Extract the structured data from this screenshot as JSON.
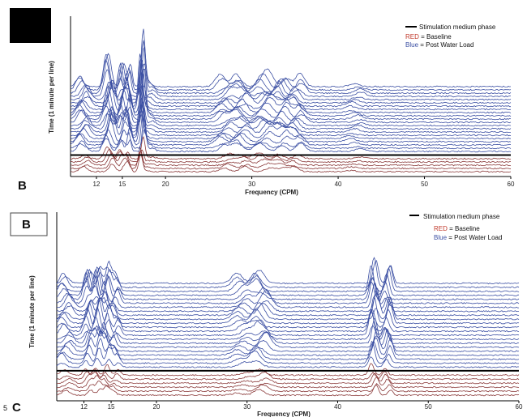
{
  "colors": {
    "baseline": "#8b3a3a",
    "post_water_load": "#3b4fa3",
    "marker": "#000000"
  },
  "legend": {
    "marker_label": "Stimulation medium phase",
    "red_key": "RED",
    "red_rest": " = Baseline",
    "blue_key": "Blue",
    "blue_rest": " = Post Water Load"
  },
  "panel_labels": {
    "top_letter": "B",
    "bottom_box_letter": "B",
    "bottom_letter": "C",
    "page_number": "5"
  },
  "chart_data": [
    {
      "type": "line",
      "title": "",
      "xlabel": "Frequency (CPM)",
      "ylabel": "Time (1 minute per line)",
      "xlim": [
        9,
        60
      ],
      "x_ticks": [
        12,
        15,
        20,
        30,
        40,
        50,
        60
      ],
      "baseline_lines": 5,
      "post_lines": 21,
      "peaks": [
        {
          "freq": 10.5,
          "height": 20,
          "width": 0.6
        },
        {
          "freq": 13.5,
          "height": 45,
          "width": 0.5
        },
        {
          "freq": 15.0,
          "height": 38,
          "width": 0.4
        },
        {
          "freq": 15.7,
          "height": 35,
          "width": 0.3
        },
        {
          "freq": 17.3,
          "height": 75,
          "width": 0.3
        },
        {
          "freq": 18.0,
          "height": 14,
          "width": 0.6
        },
        {
          "freq": 27.0,
          "height": 16,
          "width": 0.8
        },
        {
          "freq": 28.8,
          "height": 20,
          "width": 0.8
        },
        {
          "freq": 31.5,
          "height": 22,
          "width": 0.9
        },
        {
          "freq": 33.5,
          "height": 20,
          "width": 0.7
        },
        {
          "freq": 35.2,
          "height": 18,
          "width": 0.7
        },
        {
          "freq": 42.0,
          "height": 6,
          "width": 0.8
        }
      ]
    },
    {
      "type": "line",
      "title": "",
      "xlabel": "Frequency (CPM)",
      "ylabel": "Time (1 minute per line)",
      "xlim": [
        9,
        60
      ],
      "x_ticks": [
        12,
        15,
        20,
        30,
        40,
        50,
        60
      ],
      "baseline_lines": 6,
      "post_lines": 22,
      "peaks": [
        {
          "freq": 10.0,
          "height": 18,
          "width": 0.6
        },
        {
          "freq": 12.5,
          "height": 30,
          "width": 0.4
        },
        {
          "freq": 13.5,
          "height": 40,
          "width": 0.4
        },
        {
          "freq": 14.5,
          "height": 35,
          "width": 0.4
        },
        {
          "freq": 15.5,
          "height": 20,
          "width": 0.4
        },
        {
          "freq": 29.5,
          "height": 20,
          "width": 0.8
        },
        {
          "freq": 31.5,
          "height": 24,
          "width": 0.8
        },
        {
          "freq": 44.0,
          "height": 40,
          "width": 0.4
        },
        {
          "freq": 45.5,
          "height": 30,
          "width": 0.4
        }
      ]
    }
  ]
}
